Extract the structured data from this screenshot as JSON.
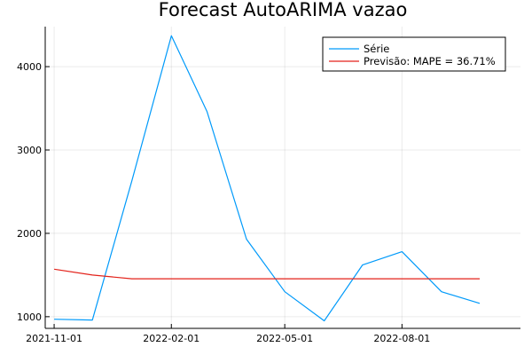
{
  "chart_data": {
    "type": "line",
    "title": "Forecast AutoARIMA vazao",
    "xlabel": "",
    "ylabel": "",
    "x_axis": {
      "type": "date",
      "range": [
        "2021-10-25",
        "2022-11-02"
      ],
      "ticks": [
        "2021-11-01",
        "2022-02-01",
        "2022-05-01",
        "2022-08-01"
      ]
    },
    "y_axis": {
      "range": [
        860,
        4480
      ],
      "ticks": [
        1000,
        2000,
        3000,
        4000
      ]
    },
    "grid": true,
    "legend_position": "top-right",
    "series": [
      {
        "name": "Série",
        "color": "#009AFA",
        "points": [
          {
            "x": "2021-11-01",
            "y": 970
          },
          {
            "x": "2021-12-01",
            "y": 960
          },
          {
            "x": "2022-01-01",
            "y": 2630
          },
          {
            "x": "2022-02-01",
            "y": 4370
          },
          {
            "x": "2022-03-01",
            "y": 3460
          },
          {
            "x": "2022-04-01",
            "y": 1930
          },
          {
            "x": "2022-05-01",
            "y": 1300
          },
          {
            "x": "2022-06-01",
            "y": 950
          },
          {
            "x": "2022-07-01",
            "y": 1620
          },
          {
            "x": "2022-08-01",
            "y": 1780
          },
          {
            "x": "2022-09-01",
            "y": 1300
          },
          {
            "x": "2022-10-01",
            "y": 1160
          }
        ]
      },
      {
        "name": "Previsão: MAPE = 36.71%",
        "color": "#E3221A",
        "points": [
          {
            "x": "2021-11-01",
            "y": 1570
          },
          {
            "x": "2021-12-01",
            "y": 1500
          },
          {
            "x": "2022-01-01",
            "y": 1455
          },
          {
            "x": "2022-02-01",
            "y": 1455
          },
          {
            "x": "2022-03-01",
            "y": 1455
          },
          {
            "x": "2022-04-01",
            "y": 1455
          },
          {
            "x": "2022-05-01",
            "y": 1455
          },
          {
            "x": "2022-06-01",
            "y": 1455
          },
          {
            "x": "2022-07-01",
            "y": 1455
          },
          {
            "x": "2022-08-01",
            "y": 1455
          },
          {
            "x": "2022-09-01",
            "y": 1455
          },
          {
            "x": "2022-10-01",
            "y": 1455
          }
        ]
      }
    ]
  }
}
